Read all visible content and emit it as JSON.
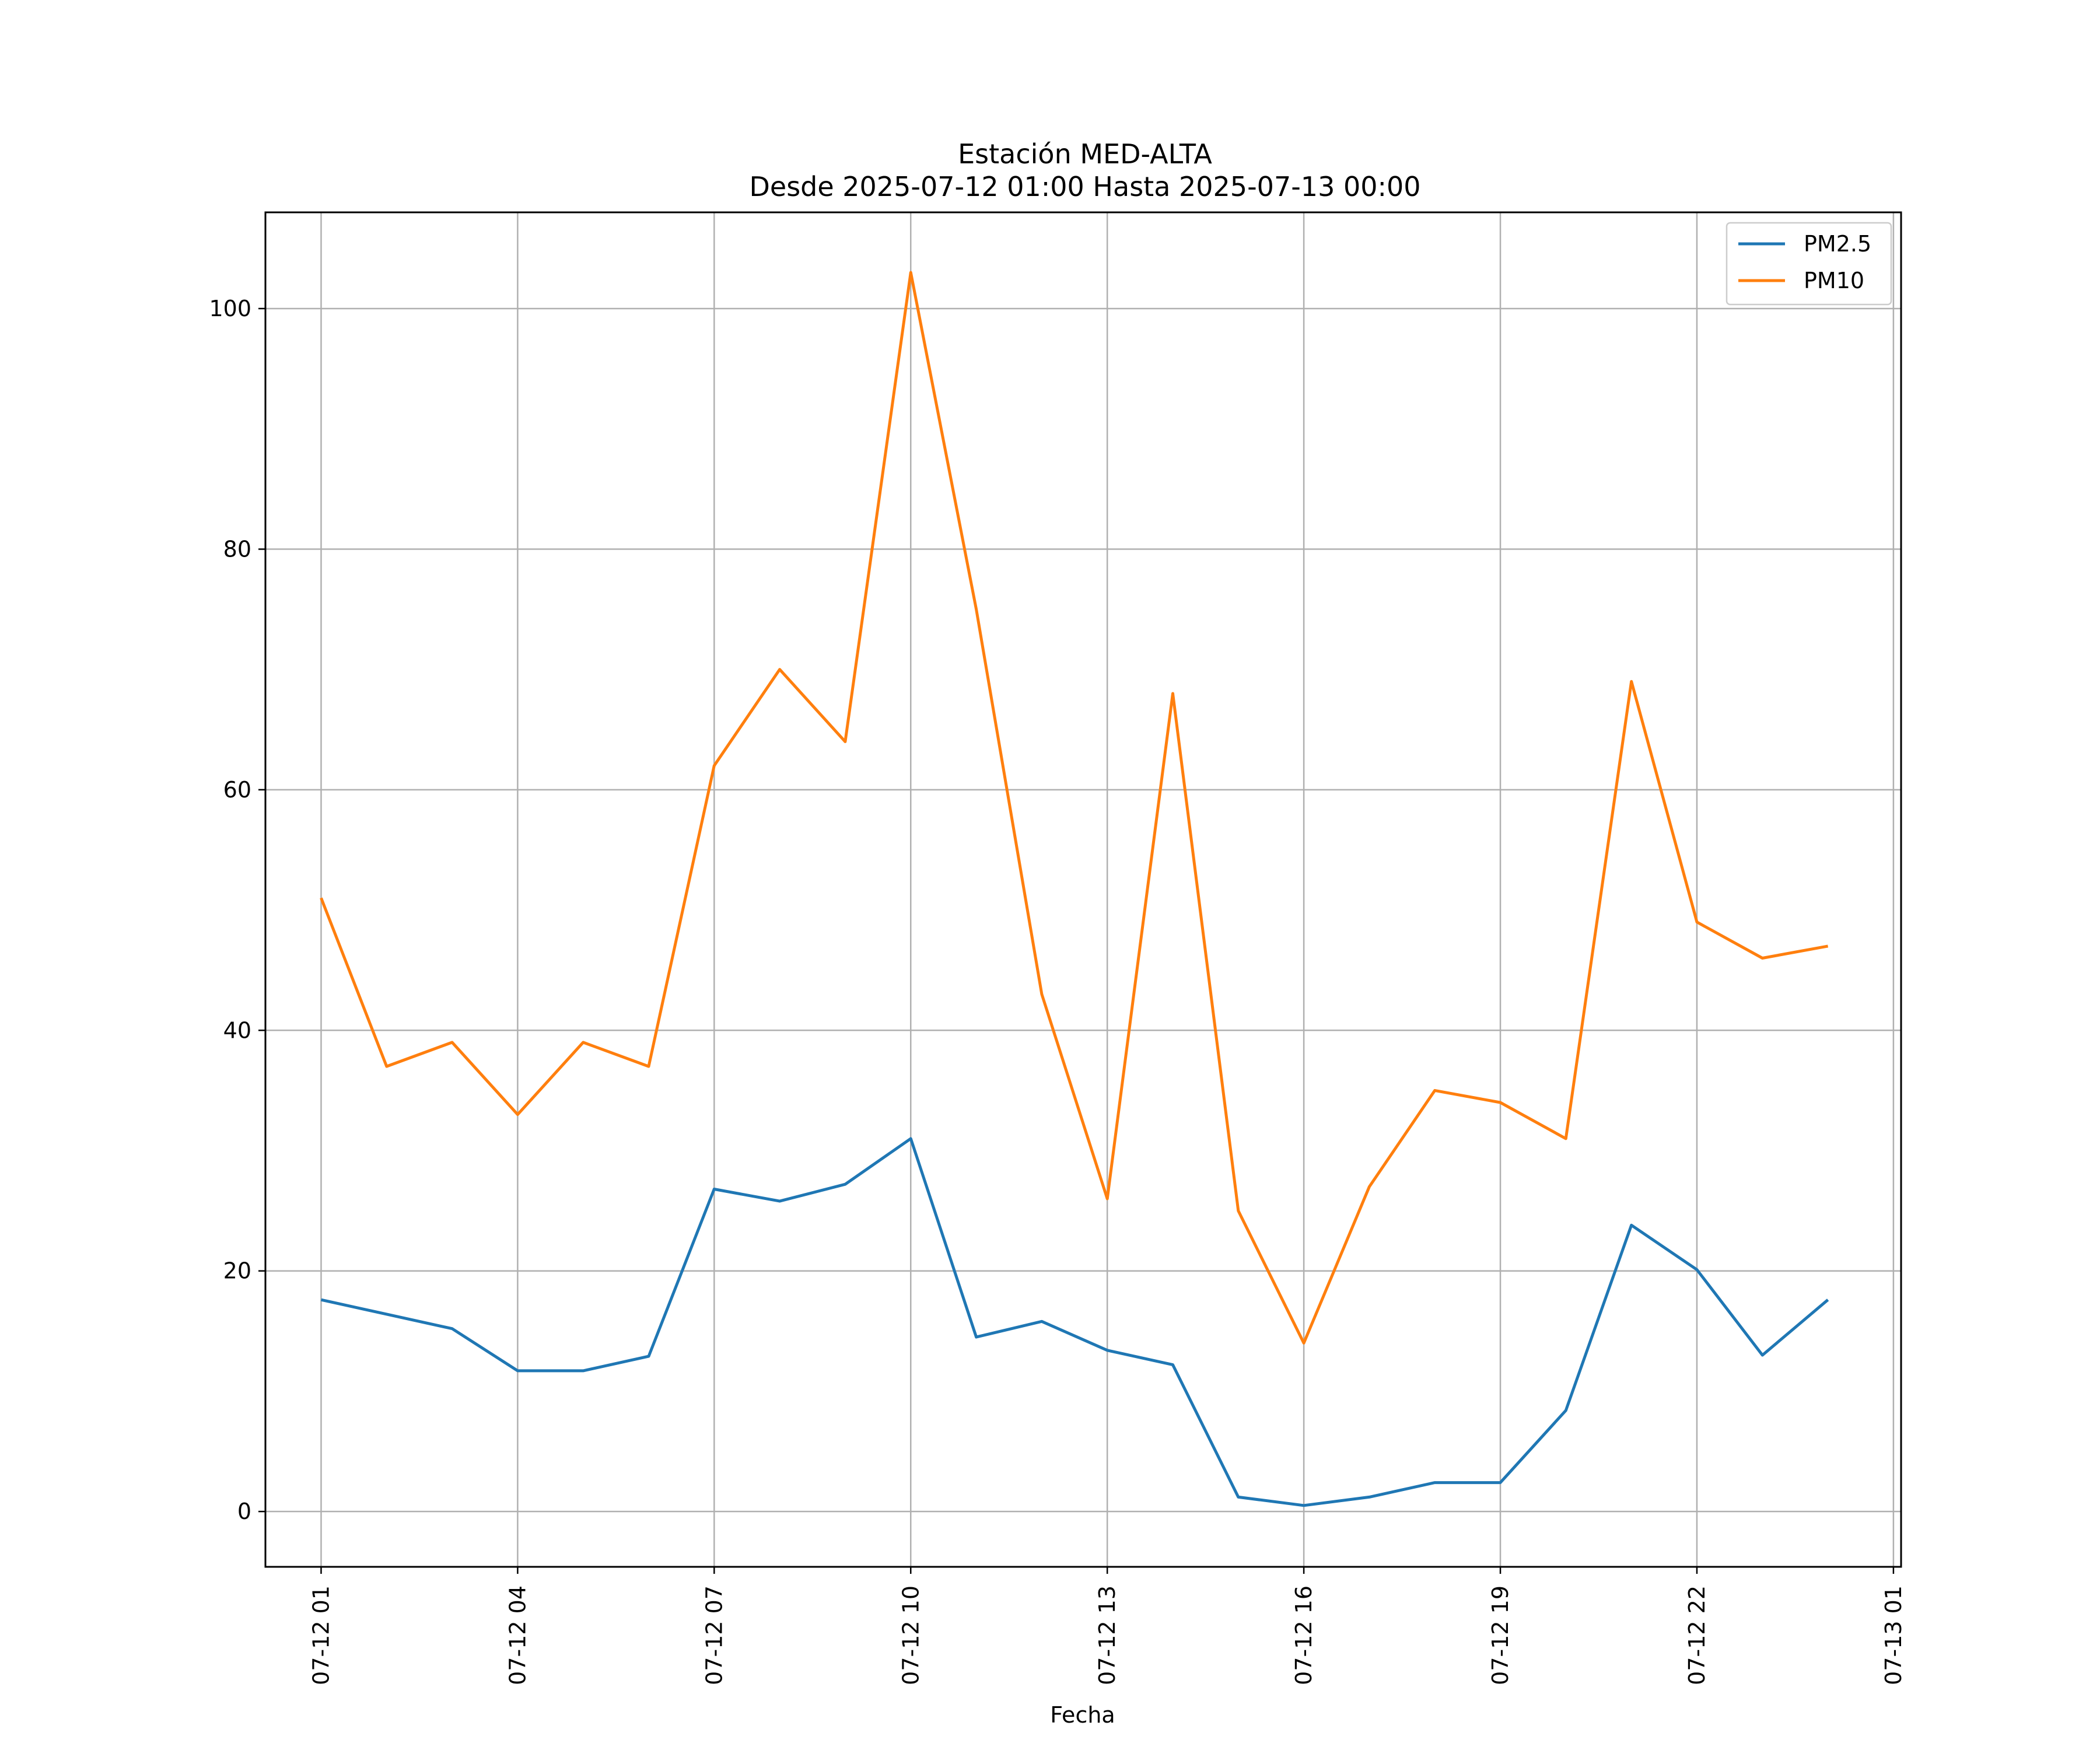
{
  "chart_data": {
    "type": "line",
    "title": "Estación MED-ALTA",
    "subtitle": "Desde 2025-07-12 01:00 Hasta 2025-07-13 00:00",
    "xlabel": "Fecha",
    "ylabel": "",
    "x": [
      "07-12 01",
      "07-12 02",
      "07-12 03",
      "07-12 04",
      "07-12 05",
      "07-12 06",
      "07-12 07",
      "07-12 08",
      "07-12 09",
      "07-12 10",
      "07-12 11",
      "07-12 12",
      "07-12 13",
      "07-12 14",
      "07-12 15",
      "07-12 16",
      "07-12 17",
      "07-12 18",
      "07-12 19",
      "07-12 20",
      "07-12 21",
      "07-12 22",
      "07-12 23",
      "07-13 00"
    ],
    "x_tick_labels": [
      "07-12 01",
      "07-12 04",
      "07-12 07",
      "07-12 10",
      "07-12 13",
      "07-12 16",
      "07-12 19",
      "07-12 22",
      "07-13 01"
    ],
    "y_ticks": [
      0,
      20,
      40,
      60,
      80,
      100
    ],
    "ylim": [
      -4.6,
      108
    ],
    "xlim": [
      "07-12 00:09",
      "07-13 01:07"
    ],
    "grid": true,
    "legend_position": "top-right",
    "series": [
      {
        "name": "PM2.5",
        "color": "#1f77b4",
        "values": [
          17.6,
          16.4,
          15.2,
          11.7,
          11.7,
          12.9,
          26.8,
          25.8,
          27.2,
          31.0,
          14.5,
          15.8,
          13.4,
          12.2,
          1.2,
          0.5,
          1.2,
          2.4,
          2.4,
          8.4,
          23.8,
          20.1,
          13.0,
          17.6
        ]
      },
      {
        "name": "PM10",
        "color": "#ff7f0e",
        "values": [
          51,
          37,
          39,
          33,
          39,
          37,
          62,
          70,
          64,
          103,
          75,
          43,
          26,
          68,
          25,
          14,
          27,
          35,
          34,
          31,
          69,
          49,
          46,
          47
        ]
      }
    ]
  }
}
